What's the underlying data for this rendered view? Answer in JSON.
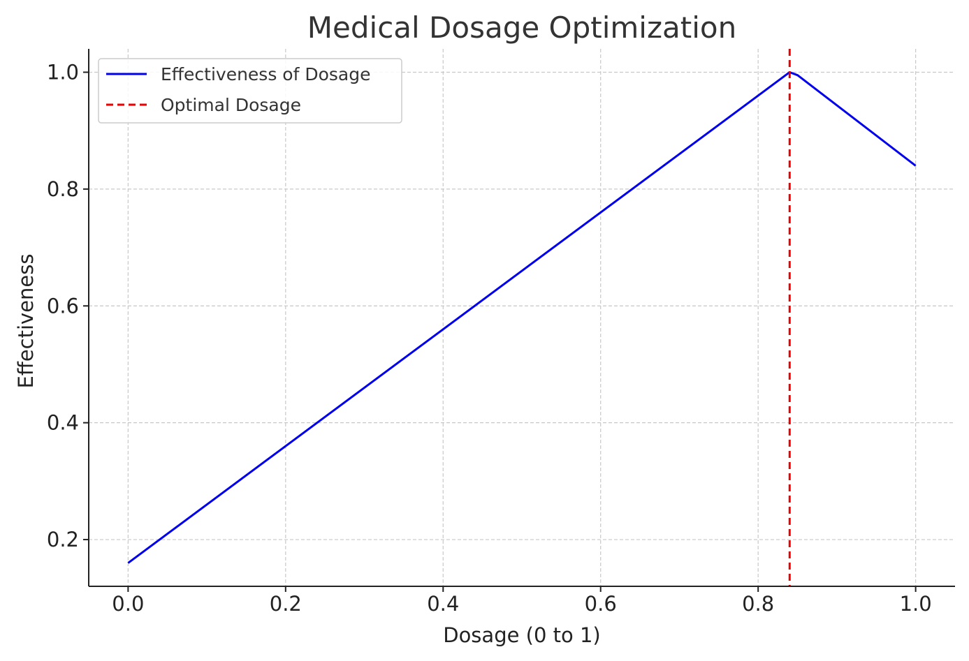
{
  "chart_data": {
    "type": "line",
    "title": "Medical Dosage Optimization",
    "xlabel": "Dosage (0 to 1)",
    "ylabel": "Effectiveness",
    "xlim": [
      -0.05,
      1.05
    ],
    "ylim": [
      0.12,
      1.04
    ],
    "xticks": [
      0.0,
      0.2,
      0.4,
      0.6,
      0.8,
      1.0
    ],
    "xtick_labels": [
      "0.0",
      "0.2",
      "0.4",
      "0.6",
      "0.8",
      "1.0"
    ],
    "yticks": [
      0.2,
      0.4,
      0.6,
      0.8,
      1.0
    ],
    "ytick_labels": [
      "0.2",
      "0.4",
      "0.6",
      "0.8",
      "1.0"
    ],
    "grid": true,
    "legend_position": "top-left",
    "series": [
      {
        "name": "Effectiveness of Dosage",
        "color": "#0000ee",
        "style": "solid",
        "x": [
          0.0,
          0.84,
          0.85,
          1.0
        ],
        "y": [
          0.16,
          1.0,
          0.995,
          0.84
        ]
      }
    ],
    "vlines": [
      {
        "name": "Optimal Dosage",
        "x": 0.84,
        "color": "#ee0000",
        "style": "dashed"
      }
    ]
  }
}
